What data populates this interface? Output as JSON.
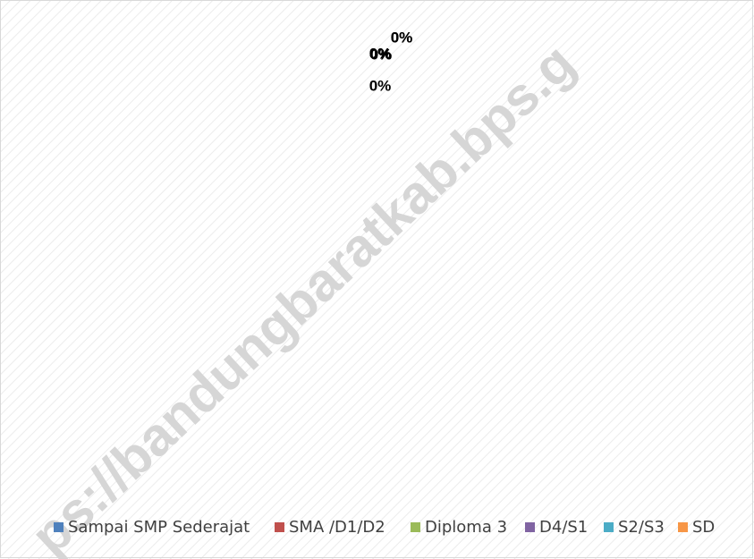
{
  "chart_data": {
    "type": "pie",
    "categories": [
      "Sampai SMP Sederajat",
      "SMA /D1/D2",
      "Diploma 3",
      "D4/S1",
      "S2/S3",
      "SD"
    ],
    "values": [
      0,
      0,
      0,
      0,
      0,
      0
    ],
    "value_labels": [
      "0%",
      "0%",
      "0%",
      "0%",
      "0%",
      "0%"
    ],
    "colors": [
      "#4f81bd",
      "#c0504d",
      "#9bbb59",
      "#8064a2",
      "#4bacc6",
      "#f79646"
    ],
    "legend": "bottom",
    "watermark": "ps://bandungbaratkab.bps.g"
  }
}
